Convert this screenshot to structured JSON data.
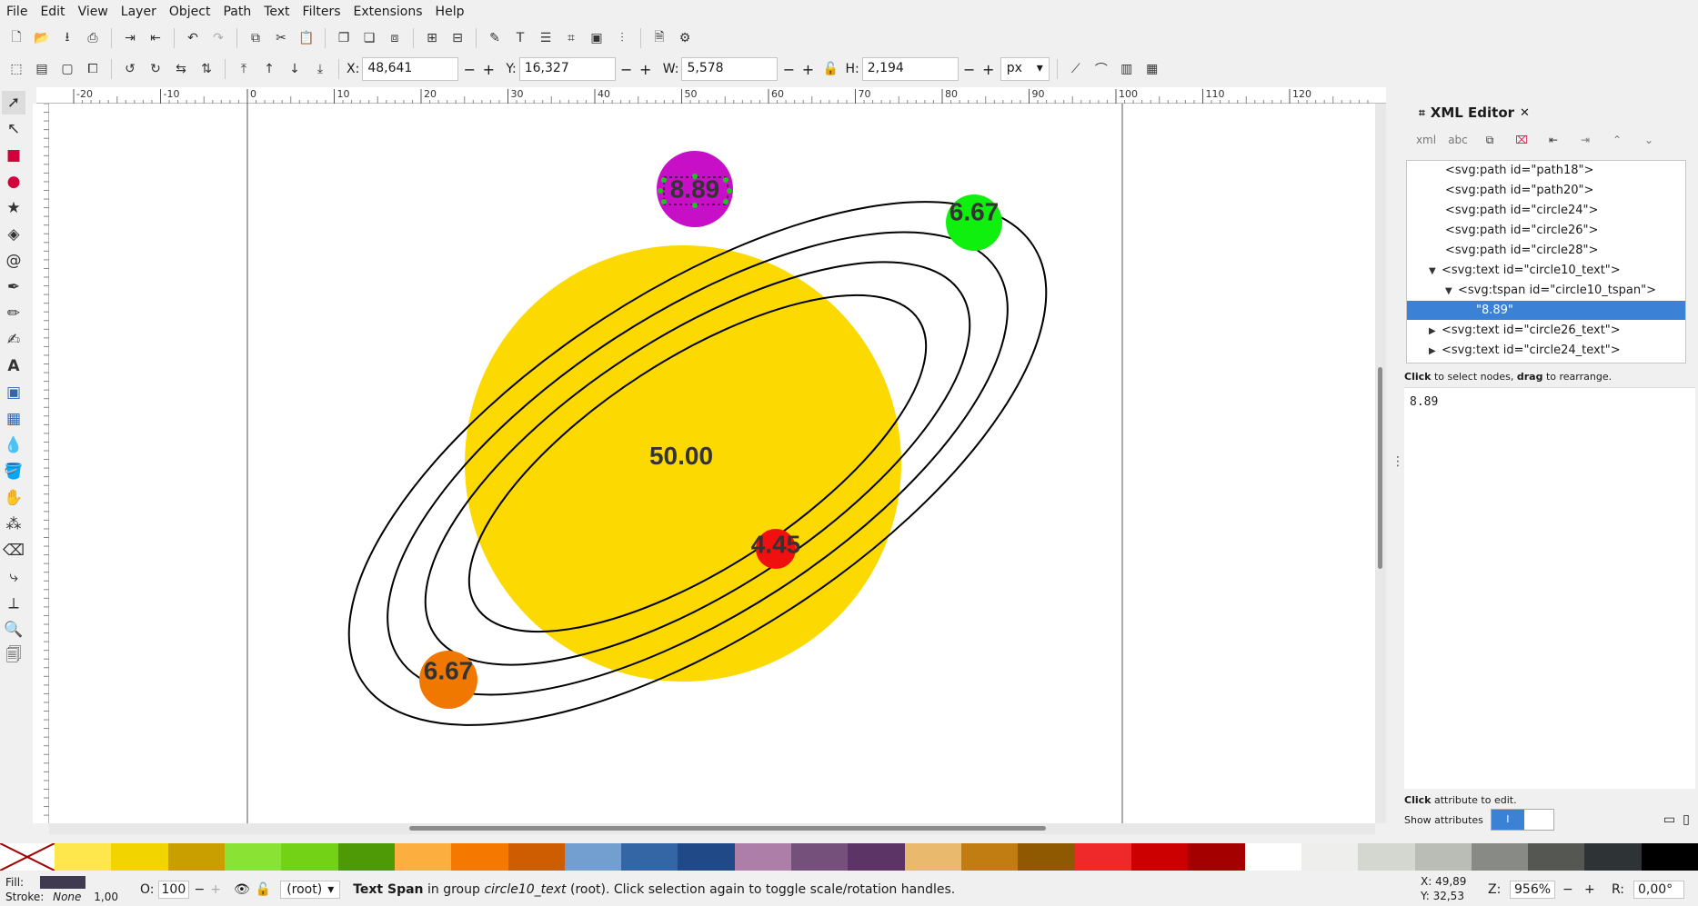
{
  "menu": [
    "File",
    "Edit",
    "View",
    "Layer",
    "Object",
    "Path",
    "Text",
    "Filters",
    "Extensions",
    "Help"
  ],
  "controls": {
    "x_label": "X:",
    "x_value": "48,641",
    "y_label": "Y:",
    "y_value": "16,327",
    "w_label": "W:",
    "w_value": "5,578",
    "h_label": "H:",
    "h_value": "2,194",
    "unit": "px"
  },
  "ruler": {
    "h_ticks": [
      "-20",
      "-10",
      "0",
      "10",
      "20",
      "30",
      "40",
      "50",
      "60",
      "70",
      "80",
      "90",
      "100",
      "110",
      "120"
    ]
  },
  "canvas": {
    "sun_label": "50.00",
    "planets": [
      {
        "label": "8.89",
        "color": "#c80fc8"
      },
      {
        "label": "6.67",
        "color": "#0ff00f"
      },
      {
        "label": "4.45",
        "color": "#f01010"
      },
      {
        "label": "6.67",
        "color": "#f07800"
      }
    ],
    "sun_color": "#fcd900"
  },
  "xml_editor": {
    "title": "XML Editor",
    "nodes": [
      {
        "text": "<svg:path id=\"path18\">"
      },
      {
        "text": "<svg:path id=\"path20\">"
      },
      {
        "text": "<svg:path id=\"circle24\">"
      },
      {
        "text": "<svg:path id=\"circle26\">"
      },
      {
        "text": "<svg:path id=\"circle28\">"
      },
      {
        "text": "<svg:text id=\"circle10_text\">"
      },
      {
        "text": "<svg:tspan id=\"circle10_tspan\">"
      },
      {
        "text": "\"8.89\""
      },
      {
        "text": "<svg:text id=\"circle26_text\">"
      },
      {
        "text": "<svg:text id=\"circle24_text\">"
      }
    ],
    "hint_click": "Click",
    "hint_rest": " to select nodes, ",
    "hint_drag": "drag",
    "hint_end": " to rearrange.",
    "text_value": "8.89",
    "attr_hint_click": "Click",
    "attr_hint_rest": " attribute to edit.",
    "show_attributes": "Show attributes"
  },
  "palette": [
    "#fde74c",
    "#f2d500",
    "#c99f00",
    "#8ae234",
    "#73d216",
    "#4e9a06",
    "#fcaf3e",
    "#f57900",
    "#ce5c00",
    "#729fcf",
    "#3465a4",
    "#204a87",
    "#ad7fa8",
    "#75507b",
    "#5c3566",
    "#e9b96e",
    "#c17d11",
    "#8f5902",
    "#ef2929",
    "#cc0000",
    "#a40000",
    "#ffffff",
    "#eeeeec",
    "#d3d7cf",
    "#babdb6",
    "#888a85",
    "#555753",
    "#2e3436",
    "#000000"
  ],
  "status": {
    "fill_label": "Fill:",
    "stroke_label": "Stroke:",
    "stroke_value": "None",
    "stroke_width": "1,00",
    "opacity_label": "O:",
    "opacity_value": "100",
    "layer": "(root)",
    "message_bold": "Text Span",
    "message_a": " in group ",
    "message_italic": "circle10_text",
    "message_b": " (root). Click selection again to toggle scale/rotation handles.",
    "coord_x": "X: 49,89",
    "coord_y": "Y: 32,53",
    "zoom_label": "Z:",
    "zoom_value": "956%",
    "rotate_label": "R:",
    "rotate_value": "0,00°"
  }
}
